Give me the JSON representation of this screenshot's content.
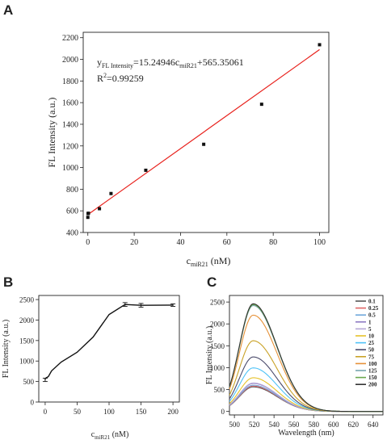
{
  "panels": {
    "a": "A",
    "b": "B",
    "c": "C"
  },
  "chart_data": [
    {
      "panel": "A",
      "type": "scatter",
      "xlabel_main": "c",
      "xlabel_sub": "miR21",
      "xlabel_unit": " (nM)",
      "ylabel": "FL Intensity (a.u.)",
      "xlim": [
        -2,
        104
      ],
      "ylim": [
        400,
        2250
      ],
      "xticks": [
        0,
        20,
        40,
        60,
        80,
        100
      ],
      "yticks": [
        400,
        600,
        800,
        1000,
        1200,
        1400,
        1600,
        1800,
        2000,
        2200
      ],
      "points": [
        {
          "x": 0,
          "y": 540
        },
        {
          "x": 0.1,
          "y": 575
        },
        {
          "x": 0.25,
          "y": 578
        },
        {
          "x": 5,
          "y": 620
        },
        {
          "x": 10,
          "y": 760
        },
        {
          "x": 25,
          "y": 975
        },
        {
          "x": 50,
          "y": 1215
        },
        {
          "x": 75,
          "y": 1585
        },
        {
          "x": 100,
          "y": 2135
        }
      ],
      "fit": {
        "slope": 15.24946,
        "intercept": 565.35061,
        "x_range": [
          0,
          100
        ],
        "color": "#e8211c"
      },
      "equation": {
        "y": "y",
        "y_sub": "FL Intensity",
        "rhs1": "=15.24946c",
        "rhs_sub": "miR21",
        "rhs2": "+565.35061",
        "r2_prefix": "R",
        "r2_sup": "2",
        "r2_value": "=0.99259"
      }
    },
    {
      "panel": "B",
      "type": "line",
      "xlabel_main": "c",
      "xlabel_sub": "miR21",
      "xlabel_unit": " (nM)",
      "ylabel": "FL Intensity (a.u.)",
      "xlim": [
        -10,
        210
      ],
      "ylim": [
        0,
        2600
      ],
      "xticks": [
        0,
        50,
        100,
        150,
        200
      ],
      "yticks": [
        0,
        500,
        1000,
        1500,
        2000,
        2500
      ],
      "series": [
        {
          "x": [
            0,
            0.1,
            0.25,
            5,
            10,
            25,
            50,
            75,
            100,
            125,
            150,
            200
          ],
          "y": [
            540,
            575,
            578,
            620,
            760,
            975,
            1215,
            1585,
            2135,
            2380,
            2360,
            2365
          ],
          "err": [
            40,
            0,
            0,
            0,
            0,
            0,
            0,
            0,
            0,
            45,
            45,
            30
          ]
        }
      ]
    },
    {
      "panel": "C",
      "type": "line",
      "xlabel": "Wavelength (nm)",
      "ylabel": "FL Intensity (a.u.)",
      "xlim": [
        495,
        650
      ],
      "ylim": [
        -80,
        2650
      ],
      "xticks": [
        500,
        520,
        540,
        560,
        580,
        600,
        620,
        640
      ],
      "yticks": [
        0,
        500,
        1000,
        1500,
        2000,
        2500
      ],
      "peak_x": 519,
      "series": [
        {
          "name": "0.1",
          "peak": 560,
          "color": "#555555"
        },
        {
          "name": "0.25",
          "peak": 580,
          "color": "#e06666"
        },
        {
          "name": "0.5",
          "peak": 600,
          "color": "#6fa8dc"
        },
        {
          "name": "1",
          "peak": 640,
          "color": "#8e7cc3"
        },
        {
          "name": "5",
          "peak": 650,
          "color": "#b4a7d6"
        },
        {
          "name": "10",
          "peak": 770,
          "color": "#e6c229"
        },
        {
          "name": "25",
          "peak": 995,
          "color": "#4fc3f7"
        },
        {
          "name": "50",
          "peak": 1245,
          "color": "#4a4a6a"
        },
        {
          "name": "75",
          "peak": 1615,
          "color": "#c9a227"
        },
        {
          "name": "100",
          "peak": 2200,
          "color": "#e69138"
        },
        {
          "name": "125",
          "peak": 2420,
          "color": "#76a5af"
        },
        {
          "name": "150",
          "peak": 2440,
          "color": "#6aa84f"
        },
        {
          "name": "200",
          "peak": 2460,
          "color": "#333333"
        }
      ]
    }
  ]
}
